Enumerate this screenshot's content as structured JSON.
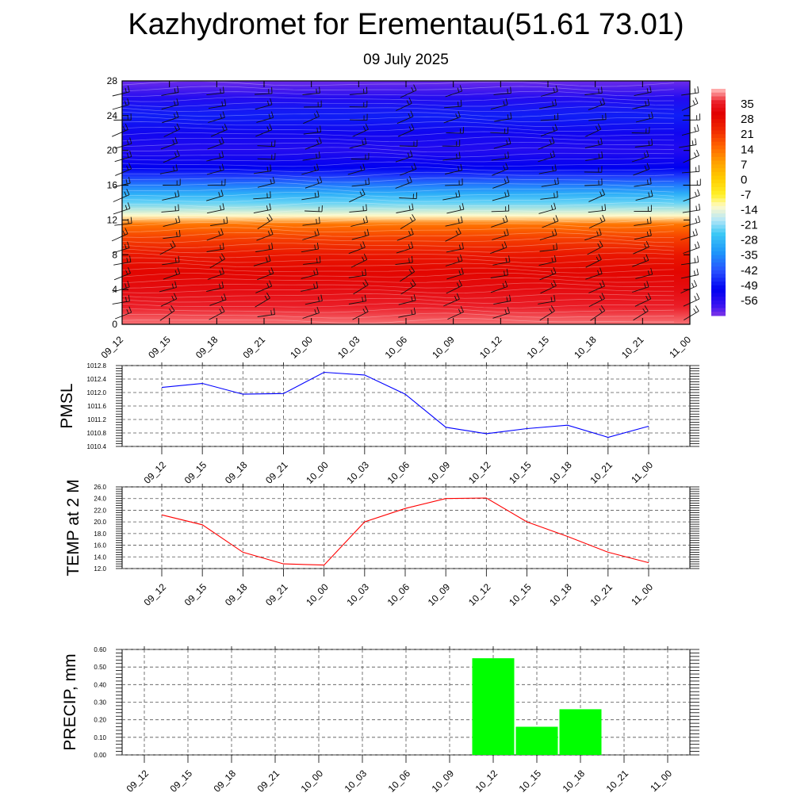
{
  "title": "Kazhydromet for Erementau(51.61 73.01)",
  "subtitle": "09 July 2025",
  "chart_data": [
    {
      "type": "heatmap",
      "name": "temperature-profile",
      "x": [
        "09_12",
        "09_15",
        "09_18",
        "09_21",
        "10_00",
        "10_03",
        "10_06",
        "10_09",
        "10_12",
        "10_15",
        "10_18",
        "10_21",
        "11_00"
      ],
      "y_ticks": [
        0,
        4,
        8,
        12,
        16,
        20,
        24,
        28
      ],
      "ylim": [
        0,
        28
      ],
      "colorbar_labels": [
        "35",
        "28",
        "21",
        "14",
        "7",
        "0",
        "-7",
        "-14",
        "-21",
        "-28",
        "-35",
        "-42",
        "-49",
        "-56"
      ],
      "colorbar_range": [
        -60,
        38
      ],
      "profile": {
        "levels": [
          0,
          2,
          4,
          6,
          8,
          10,
          11.5,
          12.5,
          14,
          15,
          16,
          17,
          18,
          20,
          22,
          24,
          26,
          28
        ],
        "values": [
          36,
          33,
          30,
          27,
          24,
          18,
          12,
          -12,
          -22,
          -28,
          -35,
          -42,
          -48,
          -52,
          -50,
          -45,
          -52,
          -58
        ]
      },
      "wind_barbs": true,
      "colors": {
        "hot": "#ee0000",
        "orange": "#ff9a00",
        "yellow": "#fff000",
        "lightblue": "#b4e6f8",
        "cyan": "#28b4f0",
        "blue": "#2058ff",
        "deepblue": "#0000f0",
        "violet": "#9040f0"
      }
    },
    {
      "type": "line",
      "name": "pmsl",
      "ylabel": "PMSL",
      "x": [
        "09_12",
        "09_15",
        "09_18",
        "09_21",
        "10_00",
        "10_03",
        "10_06",
        "10_09",
        "10_12",
        "10_15",
        "10_18",
        "10_21",
        "11_00"
      ],
      "values": [
        1012.15,
        1012.27,
        1011.95,
        1011.97,
        1012.6,
        1012.52,
        1011.95,
        1010.97,
        1010.78,
        1010.93,
        1011.03,
        1010.67,
        1011.0
      ],
      "ylim": [
        1010.4,
        1012.8
      ],
      "yticks": [
        "1010.4",
        "1010.8",
        "1011.2",
        "1011.6",
        "1012.0",
        "1012.4",
        "1012.8"
      ],
      "color": "#0000ff"
    },
    {
      "type": "line",
      "name": "temp-2m",
      "ylabel": "TEMP at 2 M",
      "x": [
        "09_12",
        "09_15",
        "09_18",
        "09_21",
        "10_00",
        "10_03",
        "10_06",
        "10_09",
        "10_12",
        "10_15",
        "10_18",
        "10_21",
        "11_00"
      ],
      "values": [
        21.2,
        19.5,
        14.8,
        12.8,
        12.6,
        20.0,
        22.3,
        24.0,
        24.1,
        20.0,
        17.5,
        14.8,
        13.0
      ],
      "ylim": [
        12,
        26
      ],
      "yticks": [
        "12.0",
        "14.0",
        "16.0",
        "18.0",
        "20.0",
        "22.0",
        "24.0",
        "26.0"
      ],
      "color": "#ff0000"
    },
    {
      "type": "bar",
      "name": "precip",
      "ylabel": "PRECIP, mm",
      "x": [
        "09_12",
        "09_15",
        "09_18",
        "09_21",
        "10_00",
        "10_03",
        "10_06",
        "10_09",
        "10_12",
        "10_15",
        "10_18",
        "10_21",
        "11_00"
      ],
      "values": [
        0,
        0,
        0,
        0,
        0,
        0,
        0,
        0,
        0.55,
        0.16,
        0.26,
        0,
        0
      ],
      "ylim": [
        0,
        0.6
      ],
      "yticks": [
        "0.00",
        "0.10",
        "0.20",
        "0.30",
        "0.40",
        "0.50",
        "0.60"
      ],
      "color": "#00ff00"
    }
  ]
}
